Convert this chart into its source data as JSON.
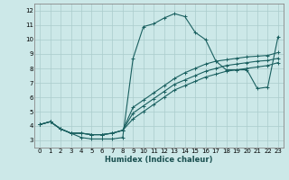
{
  "xlabel": "Humidex (Indice chaleur)",
  "bg_color": "#cce8e8",
  "grid_color": "#b0d4d4",
  "line_color": "#1a6060",
  "marker": "+",
  "xlim": [
    -0.5,
    23.5
  ],
  "ylim": [
    2.5,
    12.5
  ],
  "xticks": [
    0,
    1,
    2,
    3,
    4,
    5,
    6,
    7,
    8,
    9,
    10,
    11,
    12,
    13,
    14,
    15,
    16,
    17,
    18,
    19,
    20,
    21,
    22,
    23
  ],
  "yticks": [
    3,
    4,
    5,
    6,
    7,
    8,
    9,
    10,
    11,
    12
  ],
  "curves": [
    {
      "x": [
        0,
        1,
        2,
        3,
        4,
        5,
        6,
        7,
        8,
        9,
        10,
        11,
        12,
        13,
        14,
        15,
        16,
        17,
        18,
        19,
        20,
        21,
        22,
        23
      ],
      "y": [
        4.1,
        4.3,
        3.8,
        3.5,
        3.2,
        3.1,
        3.1,
        3.1,
        3.2,
        8.7,
        10.9,
        11.1,
        11.5,
        11.8,
        11.6,
        10.5,
        10.0,
        8.5,
        7.9,
        7.9,
        7.9,
        6.6,
        6.7,
        10.2
      ]
    },
    {
      "x": [
        0,
        1,
        2,
        3,
        4,
        5,
        6,
        7,
        8,
        9,
        10,
        11,
        12,
        13,
        14,
        15,
        16,
        17,
        18,
        19,
        20,
        21,
        22,
        23
      ],
      "y": [
        4.1,
        4.3,
        3.8,
        3.5,
        3.5,
        3.4,
        3.4,
        3.5,
        3.7,
        5.3,
        5.8,
        6.3,
        6.8,
        7.3,
        7.7,
        8.0,
        8.3,
        8.5,
        8.6,
        8.7,
        8.8,
        8.85,
        8.9,
        9.1
      ]
    },
    {
      "x": [
        0,
        1,
        2,
        3,
        4,
        5,
        6,
        7,
        8,
        9,
        10,
        11,
        12,
        13,
        14,
        15,
        16,
        17,
        18,
        19,
        20,
        21,
        22,
        23
      ],
      "y": [
        4.1,
        4.3,
        3.8,
        3.5,
        3.5,
        3.4,
        3.4,
        3.5,
        3.7,
        4.9,
        5.4,
        5.9,
        6.4,
        6.9,
        7.2,
        7.5,
        7.8,
        8.0,
        8.2,
        8.3,
        8.4,
        8.5,
        8.55,
        8.7
      ]
    },
    {
      "x": [
        0,
        1,
        2,
        3,
        4,
        5,
        6,
        7,
        8,
        9,
        10,
        11,
        12,
        13,
        14,
        15,
        16,
        17,
        18,
        19,
        20,
        21,
        22,
        23
      ],
      "y": [
        4.1,
        4.3,
        3.8,
        3.5,
        3.5,
        3.4,
        3.4,
        3.5,
        3.7,
        4.5,
        5.0,
        5.5,
        6.0,
        6.5,
        6.8,
        7.1,
        7.4,
        7.6,
        7.8,
        7.9,
        8.0,
        8.1,
        8.2,
        8.4
      ]
    }
  ]
}
